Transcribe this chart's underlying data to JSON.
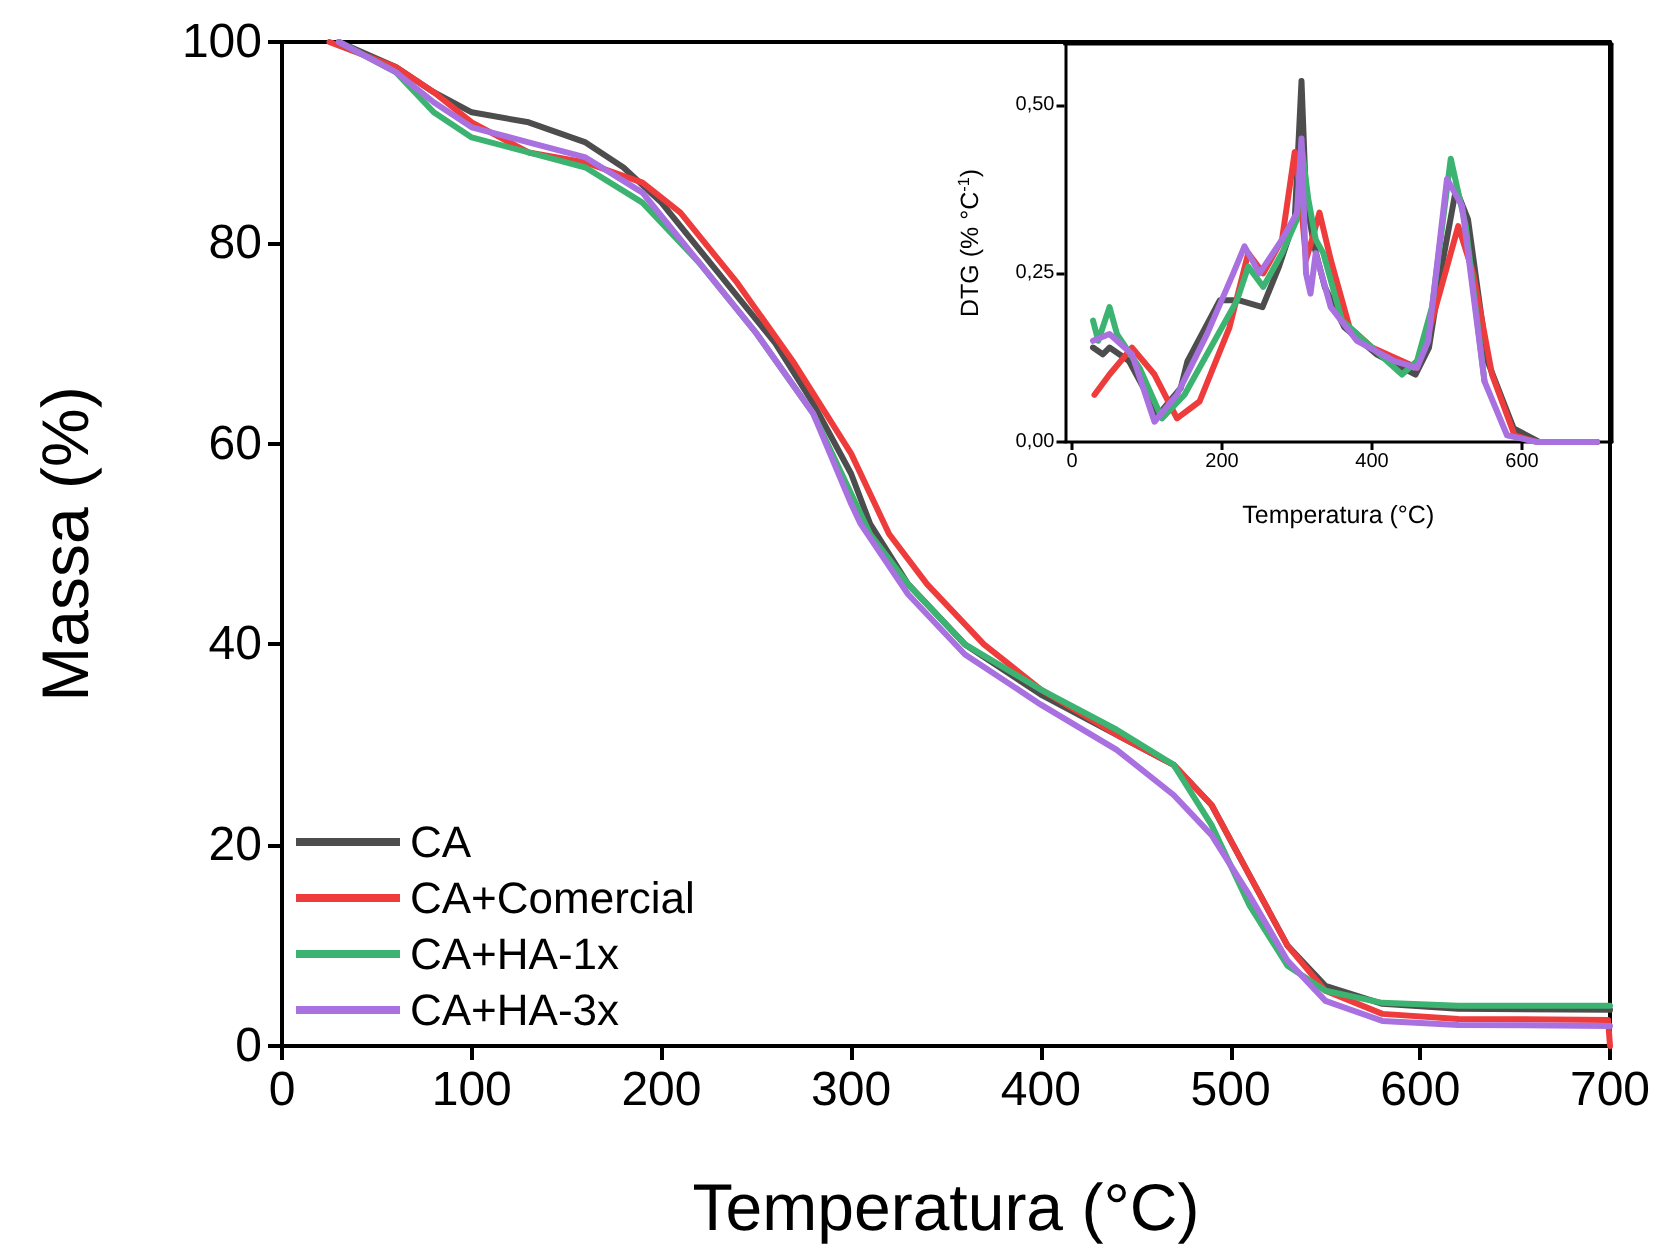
{
  "chart_data": [
    {
      "type": "line",
      "xlabel": "Temperatura (°C)",
      "ylabel": "Massa (%)",
      "xlim": [
        0,
        700
      ],
      "xticks": [
        0,
        100,
        200,
        300,
        400,
        500,
        600,
        700
      ],
      "ylim": [
        0,
        100
      ],
      "yticks": [
        0,
        20,
        40,
        60,
        80,
        100
      ],
      "grid": false,
      "legend": "bottom left",
      "line_style": "solid",
      "marker": "none",
      "series": [
        {
          "name": "CA",
          "color": "#4d4d4d",
          "x": [
            30,
            60,
            80,
            100,
            130,
            160,
            180,
            200,
            230,
            260,
            280,
            300,
            310,
            330,
            360,
            400,
            440,
            470,
            490,
            510,
            530,
            550,
            580,
            620,
            700
          ],
          "values": [
            100,
            97.5,
            95,
            93,
            92,
            90,
            87.5,
            84,
            77,
            70,
            64,
            57,
            52,
            46,
            40,
            35,
            31,
            28,
            24,
            17,
            10,
            6,
            4.2,
            3.7,
            3.6
          ]
        },
        {
          "name": "CA+Comercial",
          "color": "#ee3b3b",
          "x": [
            25,
            60,
            80,
            100,
            130,
            160,
            190,
            210,
            240,
            270,
            300,
            320,
            340,
            370,
            400,
            440,
            470,
            490,
            510,
            530,
            550,
            580,
            620,
            699,
            700
          ],
          "values": [
            100,
            97.5,
            95,
            92,
            89,
            88,
            86,
            83,
            76,
            68,
            59,
            51,
            46,
            40,
            35.5,
            31,
            28,
            24,
            17,
            10,
            5.5,
            3.2,
            2.7,
            2.6,
            0
          ]
        },
        {
          "name": "CA+HA-1x",
          "color": "#3cb371",
          "x": [
            30,
            60,
            80,
            100,
            130,
            160,
            190,
            220,
            250,
            280,
            300,
            310,
            330,
            360,
            400,
            440,
            470,
            490,
            510,
            530,
            550,
            580,
            620,
            700
          ],
          "values": [
            100,
            97,
            93,
            90.5,
            89,
            87.5,
            84,
            78,
            71,
            63,
            55,
            51,
            46,
            40,
            35.5,
            31.5,
            28,
            22,
            14,
            8,
            5.5,
            4.3,
            4,
            4
          ]
        },
        {
          "name": "CA+HA-3x",
          "color": "#a970e0",
          "x": [
            30,
            60,
            80,
            100,
            130,
            160,
            190,
            220,
            250,
            280,
            300,
            305,
            330,
            360,
            400,
            440,
            470,
            490,
            510,
            530,
            550,
            580,
            620,
            700
          ],
          "values": [
            100,
            97,
            94,
            91.5,
            90,
            88.5,
            85,
            78,
            71,
            63,
            54,
            52,
            45,
            39,
            34,
            29.5,
            25,
            21,
            15,
            8.5,
            4.5,
            2.5,
            2.1,
            2
          ]
        }
      ]
    },
    {
      "type": "line",
      "xlabel": "Temperatura (°C)",
      "ylabel": "DTG (% °C$^{-1}$)",
      "xlim": [
        -10,
        720
      ],
      "xticks": [
        0,
        200,
        400,
        600
      ],
      "ylim": [
        0,
        0.59
      ],
      "yticks": [
        {
          "value": 0,
          "label": "0,00"
        },
        {
          "value": 0.25,
          "label": "0,25"
        },
        {
          "value": 0.5,
          "label": "0,50"
        }
      ],
      "grid": false,
      "legend": false,
      "line_style": "solid",
      "marker": "none",
      "series": [
        {
          "color": "#4d4d4d",
          "x": [
            28,
            41,
            50,
            76,
            115,
            145,
            154,
            197,
            223,
            254,
            276,
            297,
            306,
            312,
            323,
            337,
            363,
            406,
            458,
            476,
            493,
            512,
            528,
            554,
            589,
            623,
            700
          ],
          "values": [
            0.14,
            0.13,
            0.14,
            0.12,
            0.04,
            0.08,
            0.12,
            0.21,
            0.21,
            0.2,
            0.26,
            0.33,
            0.535,
            0.36,
            0.29,
            0.23,
            0.17,
            0.13,
            0.1,
            0.14,
            0.26,
            0.375,
            0.33,
            0.12,
            0.02,
            0,
            0
          ]
        },
        {
          "color": "#ee3b3b",
          "x": [
            30,
            50,
            80,
            110,
            140,
            170,
            210,
            235,
            255,
            280,
            297,
            305,
            312,
            320,
            330,
            345,
            370,
            400,
            440,
            460,
            475,
            500,
            515,
            535,
            560,
            590,
            620,
            700
          ],
          "values": [
            0.07,
            0.1,
            0.14,
            0.1,
            0.035,
            0.06,
            0.17,
            0.28,
            0.25,
            0.3,
            0.43,
            0.36,
            0.27,
            0.3,
            0.34,
            0.27,
            0.17,
            0.14,
            0.12,
            0.11,
            0.16,
            0.26,
            0.32,
            0.25,
            0.1,
            0.01,
            0,
            0
          ]
        },
        {
          "color": "#3cb371",
          "x": [
            28,
            35,
            50,
            60,
            90,
            120,
            150,
            190,
            220,
            235,
            255,
            280,
            300,
            306,
            315,
            325,
            335,
            360,
            400,
            440,
            460,
            480,
            505,
            525,
            550
          ],
          "values": [
            0.18,
            0.15,
            0.2,
            0.16,
            0.11,
            0.035,
            0.07,
            0.15,
            0.21,
            0.26,
            0.23,
            0.28,
            0.33,
            0.44,
            0.36,
            0.3,
            0.28,
            0.18,
            0.14,
            0.1,
            0.12,
            0.2,
            0.42,
            0.32,
            0.09
          ]
        },
        {
          "color": "#a970e0",
          "x": [
            28,
            50,
            80,
            110,
            140,
            180,
            215,
            230,
            250,
            280,
            300,
            306,
            312,
            318,
            325,
            345,
            380,
            430,
            460,
            475,
            500,
            520,
            550,
            580,
            620,
            700
          ],
          "values": [
            0.15,
            0.16,
            0.13,
            0.03,
            0.07,
            0.16,
            0.25,
            0.29,
            0.25,
            0.3,
            0.34,
            0.45,
            0.25,
            0.22,
            0.28,
            0.2,
            0.15,
            0.12,
            0.11,
            0.15,
            0.39,
            0.35,
            0.09,
            0.01,
            0,
            0
          ]
        }
      ]
    }
  ]
}
